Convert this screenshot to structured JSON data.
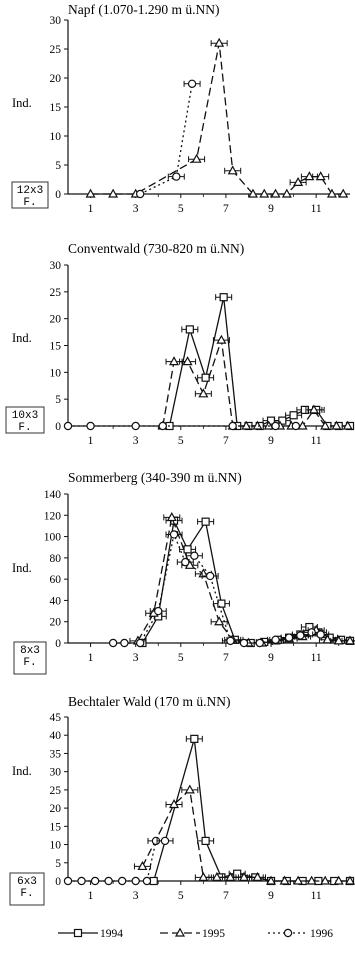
{
  "legend": [
    {
      "label": "1994"
    },
    {
      "label": "1995"
    },
    {
      "label": "1996"
    }
  ],
  "chart_data": [
    {
      "type": "line",
      "title": "Napf (1.070-1.290 m ü.NN)",
      "ylabel": "Ind.",
      "box_label": [
        "12x3",
        "F."
      ],
      "xlim": [
        0,
        12.5
      ],
      "xticks": [
        1,
        3,
        5,
        7,
        9,
        11
      ],
      "ylim": [
        0,
        30
      ],
      "yticks": [
        0,
        5,
        10,
        15,
        20,
        25,
        30
      ],
      "series": [
        {
          "name": "1994",
          "points": []
        },
        {
          "name": "1995",
          "points": [
            [
              1,
              0
            ],
            [
              2,
              0
            ],
            [
              3,
              0
            ],
            [
              5.7,
              6
            ],
            [
              6.7,
              26
            ],
            [
              7.3,
              4
            ],
            [
              8.2,
              0
            ],
            [
              8.7,
              0
            ],
            [
              9.2,
              0
            ],
            [
              9.7,
              0
            ],
            [
              10.2,
              2
            ],
            [
              10.7,
              3
            ],
            [
              11.2,
              3
            ],
            [
              11.7,
              0
            ],
            [
              12.2,
              0
            ]
          ]
        },
        {
          "name": "1996",
          "points": [
            [
              3.2,
              0
            ],
            [
              4.8,
              3
            ],
            [
              5.5,
              19
            ]
          ]
        }
      ]
    },
    {
      "type": "line",
      "title": "Conventwald (730-820 m ü.NN)",
      "ylabel": "Ind.",
      "box_label": [
        "10x3",
        "F."
      ],
      "xlim": [
        0,
        12.5
      ],
      "xticks": [
        1,
        3,
        5,
        7,
        9,
        11
      ],
      "ylim": [
        0,
        30
      ],
      "yticks": [
        0,
        5,
        10,
        15,
        20,
        25,
        30
      ],
      "series": [
        {
          "name": "1994",
          "points": [
            [
              4.5,
              0
            ],
            [
              5.4,
              18
            ],
            [
              6.1,
              9
            ],
            [
              6.9,
              24
            ],
            [
              7.5,
              0
            ],
            [
              8,
              0
            ],
            [
              8.5,
              0
            ],
            [
              9,
              1
            ],
            [
              9.5,
              1
            ],
            [
              10,
              2
            ],
            [
              10.5,
              3
            ],
            [
              11,
              3
            ],
            [
              11.5,
              0
            ],
            [
              12,
              0
            ],
            [
              12.5,
              0
            ]
          ]
        },
        {
          "name": "1995",
          "points": [
            [
              4.2,
              0
            ],
            [
              4.7,
              12
            ],
            [
              5.3,
              12
            ],
            [
              6,
              6
            ],
            [
              6.8,
              16
            ],
            [
              7.3,
              0
            ],
            [
              7.9,
              0
            ],
            [
              8.4,
              0
            ],
            [
              8.9,
              0
            ],
            [
              9.4,
              0
            ],
            [
              9.9,
              0
            ],
            [
              10.4,
              0
            ],
            [
              10.9,
              3
            ],
            [
              11.4,
              0
            ],
            [
              11.9,
              0
            ],
            [
              12.4,
              0
            ]
          ]
        },
        {
          "name": "1996",
          "points": [
            [
              0,
              0
            ],
            [
              1,
              0
            ],
            [
              3,
              0
            ],
            [
              4.2,
              0
            ],
            [
              7.3,
              0
            ],
            [
              9.2,
              0
            ],
            [
              10.1,
              0
            ]
          ]
        }
      ]
    },
    {
      "type": "line",
      "title": "Sommerberg (340-390 m ü.NN)",
      "ylabel": "Ind.",
      "box_label": [
        "8x3",
        "F."
      ],
      "xlim": [
        0,
        12.5
      ],
      "xticks": [
        1,
        3,
        5,
        7,
        9,
        11
      ],
      "ylim": [
        0,
        140
      ],
      "yticks": [
        0,
        20,
        40,
        60,
        80,
        100,
        120,
        140
      ],
      "series": [
        {
          "name": "1994",
          "points": [
            [
              3.3,
              0
            ],
            [
              4,
              25
            ],
            [
              4.7,
              115
            ],
            [
              5.3,
              88
            ],
            [
              6.1,
              114
            ],
            [
              6.8,
              37
            ],
            [
              7.4,
              3
            ],
            [
              8.1,
              0
            ],
            [
              8.7,
              1
            ],
            [
              9.3,
              3
            ],
            [
              9.8,
              5
            ],
            [
              10.3,
              8
            ],
            [
              10.7,
              15
            ],
            [
              11.1,
              10
            ],
            [
              11.6,
              5
            ],
            [
              12.1,
              3
            ],
            [
              12.5,
              2
            ]
          ]
        },
        {
          "name": "1995",
          "points": [
            [
              3.1,
              2
            ],
            [
              3.8,
              28
            ],
            [
              4.6,
              118
            ],
            [
              5.4,
              73
            ],
            [
              6,
              65
            ],
            [
              6.7,
              20
            ],
            [
              7.3,
              3
            ],
            [
              8,
              0
            ],
            [
              8.6,
              0
            ],
            [
              9.2,
              2
            ],
            [
              9.8,
              4
            ],
            [
              10.4,
              6
            ],
            [
              11,
              12
            ],
            [
              11.5,
              3
            ],
            [
              12,
              2
            ],
            [
              12.5,
              2
            ]
          ]
        },
        {
          "name": "1996",
          "points": [
            [
              2,
              0
            ],
            [
              2.5,
              0
            ],
            [
              3.2,
              0
            ],
            [
              4,
              30
            ],
            [
              4.7,
              102
            ],
            [
              5.2,
              76
            ],
            [
              5.6,
              82
            ],
            [
              6.3,
              63
            ],
            [
              7.2,
              2
            ],
            [
              7.8,
              0
            ],
            [
              8.5,
              0
            ],
            [
              9.2,
              3
            ],
            [
              9.8,
              5
            ],
            [
              10.3,
              7
            ],
            [
              10.8,
              10
            ],
            [
              11.2,
              8
            ]
          ]
        }
      ]
    },
    {
      "type": "line",
      "title": "Bechtaler Wald (170 m ü.NN)",
      "ylabel": "Ind.",
      "box_label": [
        "6x3",
        "F."
      ],
      "xlim": [
        0,
        12.5
      ],
      "xticks": [
        1,
        3,
        5,
        7,
        9,
        11
      ],
      "ylim": [
        0,
        45
      ],
      "yticks": [
        0,
        5,
        10,
        15,
        20,
        25,
        30,
        35,
        40,
        45
      ],
      "series": [
        {
          "name": "1994",
          "points": [
            [
              3.8,
              0
            ],
            [
              5.6,
              39
            ],
            [
              6.1,
              11
            ],
            [
              6.8,
              1
            ],
            [
              7.5,
              2
            ],
            [
              8.3,
              1
            ],
            [
              9,
              0
            ],
            [
              9.7,
              0
            ],
            [
              10.4,
              0
            ],
            [
              11.1,
              0
            ],
            [
              11.8,
              0
            ],
            [
              12.5,
              0
            ]
          ]
        },
        {
          "name": "1995",
          "points": [
            [
              3.3,
              4
            ],
            [
              4.7,
              21
            ],
            [
              5.4,
              25
            ],
            [
              6,
              1
            ],
            [
              6.6,
              1
            ],
            [
              7.2,
              1
            ],
            [
              7.8,
              1
            ],
            [
              8.4,
              1
            ],
            [
              9,
              0
            ],
            [
              9.6,
              0
            ],
            [
              10.2,
              0
            ],
            [
              10.8,
              0
            ],
            [
              11.4,
              0
            ],
            [
              12,
              0
            ],
            [
              12.5,
              0
            ]
          ]
        },
        {
          "name": "1996",
          "points": [
            [
              0,
              0
            ],
            [
              0.6,
              0
            ],
            [
              1.2,
              0
            ],
            [
              1.8,
              0
            ],
            [
              2.4,
              0
            ],
            [
              3,
              0
            ],
            [
              3.5,
              0
            ],
            [
              3.9,
              11
            ],
            [
              4.3,
              11
            ]
          ]
        }
      ]
    }
  ]
}
